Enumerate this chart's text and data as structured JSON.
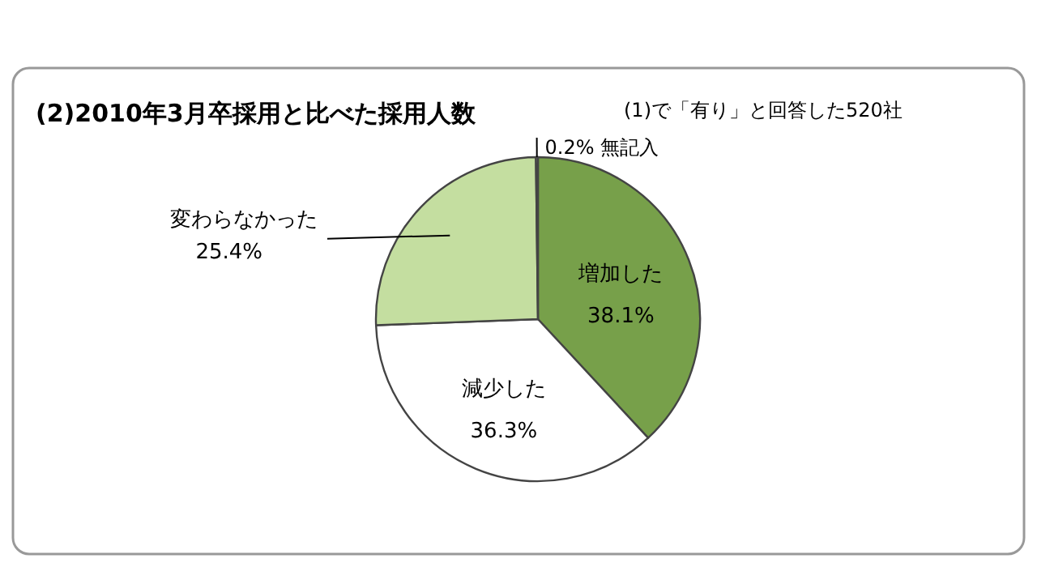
{
  "chart_data": {
    "type": "pie",
    "title": "(2)2010年3月卒採用と比べた採用人数",
    "subtitle": "(1)で「有り」と回答した520社",
    "categories": [
      "増加した",
      "減少した",
      "変わらなかった",
      "無記入"
    ],
    "values": [
      38.1,
      36.3,
      25.4,
      0.2
    ],
    "value_labels": [
      "38.1%",
      "36.3%",
      "25.4%",
      "0.2%"
    ],
    "colors": [
      "#77a04a",
      "#ffffff",
      "#c4dea0",
      "#ffffff"
    ],
    "legend": false
  }
}
